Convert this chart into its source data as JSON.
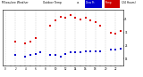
{
  "title_left": "Milwaukee Weather",
  "title_middle": "Outdoor Temp",
  "title_vs": "vs",
  "title_right": "Dew Point",
  "title_hours": "(24 Hours)",
  "temp_data": [
    [
      2,
      28
    ],
    [
      4,
      27
    ],
    [
      5,
      28
    ],
    [
      6,
      31
    ],
    [
      9,
      40
    ],
    [
      10,
      44
    ],
    [
      11,
      47
    ],
    [
      12,
      46
    ],
    [
      13,
      48
    ],
    [
      14,
      46
    ],
    [
      15,
      45
    ],
    [
      16,
      46
    ],
    [
      17,
      44
    ],
    [
      18,
      43
    ],
    [
      19,
      40
    ],
    [
      21,
      35
    ],
    [
      22,
      34
    ],
    [
      23,
      36
    ]
  ],
  "dew_data": [
    [
      2,
      18
    ],
    [
      4,
      17
    ],
    [
      5,
      18
    ],
    [
      6,
      19
    ],
    [
      7,
      20
    ],
    [
      9,
      18
    ],
    [
      10,
      18
    ],
    [
      11,
      17
    ],
    [
      12,
      19
    ],
    [
      13,
      20
    ],
    [
      14,
      20
    ],
    [
      15,
      20
    ],
    [
      16,
      21
    ],
    [
      17,
      21
    ],
    [
      18,
      21
    ],
    [
      19,
      21
    ],
    [
      21,
      22
    ],
    [
      22,
      22
    ],
    [
      23,
      23
    ]
  ],
  "temp_color": "#dd0000",
  "dew_color": "#0000cc",
  "ylim": [
    10,
    52
  ],
  "yticks": [
    15,
    25,
    35,
    45
  ],
  "background_color": "#ffffff",
  "grid_color": "#aaaaaa",
  "legend_temp_label": "Temp",
  "legend_dew_label": "Dew Pt",
  "title_bg_temp": "#cc0000",
  "title_bg_dew": "#0000cc",
  "dot_size": 1.2
}
